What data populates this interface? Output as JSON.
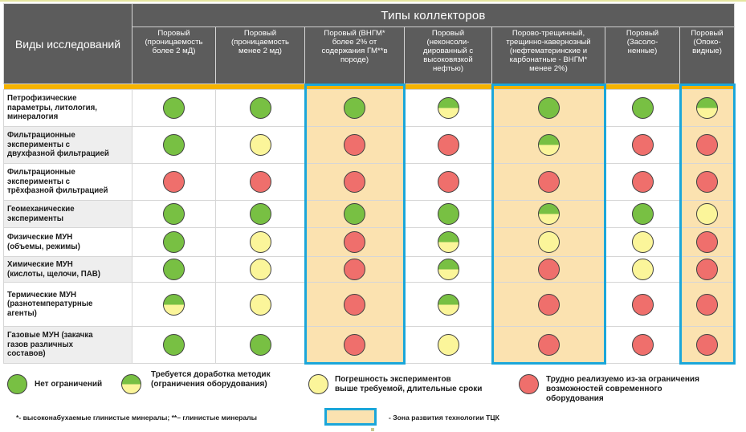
{
  "header": {
    "row_title": "Виды исследований",
    "super_title": "Типы коллекторов",
    "columns": [
      [
        "Поровый",
        "(проницаемость",
        "более 2 мД)"
      ],
      [
        "Поровый",
        "(проницаемость",
        "менее 2 мд)"
      ],
      [
        "Поровый (ВНГМ*",
        "более 2% от",
        "содержания ГМ**в",
        "породе)"
      ],
      [
        "Поровый",
        "(неконсоли-",
        "дированный с",
        "высоковязкой",
        "нефтью)"
      ],
      [
        "Порово-трещинный,",
        "трещинно-кавернозный",
        "(нефтематеринские и",
        "карбонатные - ВНГМ*",
        "менее 2%)"
      ],
      [
        "Поровый",
        "(Засоло-",
        "ненные)"
      ],
      [
        "Поровый",
        "(Опоко-",
        "видные)"
      ]
    ]
  },
  "rows": [
    {
      "label": [
        "Петрофизические",
        "параметры, литология,",
        "минералогия"
      ],
      "shaded": false,
      "cells": [
        "green",
        "green",
        "green",
        "half",
        "green",
        "green",
        "half"
      ]
    },
    {
      "label": [
        "Фильтрационные",
        "эксперименты с",
        "двухфазной фильтрацией"
      ],
      "shaded": true,
      "cells": [
        "green",
        "yellow",
        "red",
        "red",
        "half",
        "red",
        "red"
      ]
    },
    {
      "label": [
        "Фильтрационные",
        "эксперименты с",
        "трёхфазной фильтрацией"
      ],
      "shaded": false,
      "cells": [
        "red",
        "red",
        "red",
        "red",
        "red",
        "red",
        "red"
      ]
    },
    {
      "label": [
        "Геомеханические",
        "эксперименты"
      ],
      "shaded": true,
      "cells": [
        "green",
        "green",
        "green",
        "green",
        "half",
        "green",
        "yellow"
      ]
    },
    {
      "label": [
        "Физические МУН",
        "(объемы, режимы)"
      ],
      "shaded": false,
      "cells": [
        "green",
        "yellow",
        "red",
        "half",
        "yellow",
        "yellow",
        "red"
      ]
    },
    {
      "label": [
        "Химические МУН",
        "(кислоты, щелочи, ПАВ)"
      ],
      "shaded": true,
      "cells": [
        "green",
        "yellow",
        "red",
        "half",
        "red",
        "yellow",
        "red"
      ]
    },
    {
      "label": [
        "Термические МУН",
        "(разнотемпературные",
        "агенты)"
      ],
      "shaded": false,
      "cells": [
        "half",
        "yellow",
        "red",
        "half",
        "red",
        "red",
        "red"
      ]
    },
    {
      "label": [
        "Газовые МУН (закачка",
        "газов различных",
        "составов)"
      ],
      "shaded": true,
      "cells": [
        "green",
        "green",
        "red",
        "yellow",
        "red",
        "red",
        "red"
      ]
    }
  ],
  "zone_columns": [
    2,
    4,
    6
  ],
  "colors": {
    "green": "#78c043",
    "yellow": "#fbf59a",
    "red": "#ef6f6c",
    "zone_fill": "#fbe2b0",
    "zone_border": "#1ba6d9",
    "header_bg": "#5c5c5c",
    "gold_stripe": "#f5b300"
  },
  "legend": {
    "no_limits": "Нет ограничений",
    "needs_methods": [
      "Требуется доработка методик",
      "(ограничения оборудования)"
    ],
    "error_time": [
      "Погрешность экспериментов",
      "выше требуемой,  длительные сроки"
    ],
    "hard": [
      "Трудно реализуемо из-за  ограничения",
      "возможностей современного",
      "оборудования"
    ]
  },
  "footnote": "*- высоконабухаемые глинистые минералы; **– глинистые минералы",
  "zone_label": "- Зона развития технологии ТЦК"
}
